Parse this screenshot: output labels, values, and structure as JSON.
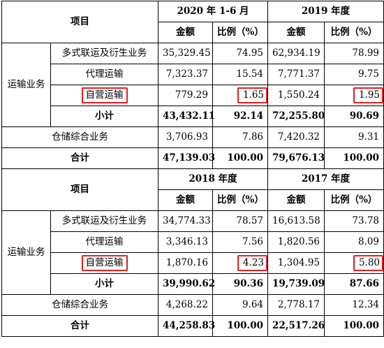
{
  "header_label": "项目",
  "col_amount": "金额",
  "col_ratio": "比例（%）",
  "group_label": "运输业务",
  "subtotal_label": "小计",
  "warehouse_label": "仓储综合业务",
  "total_label": "合计",
  "highlight_color": "#e02020",
  "blocks": [
    {
      "periods": [
        "2020 年 1-6 月",
        "2019 年度"
      ],
      "rows": [
        {
          "label": "多式联运及衍生业务",
          "v": [
            "35,329.45",
            "74.95",
            "62,934.19",
            "78.99"
          ]
        },
        {
          "label": "代理运输",
          "v": [
            "7,323.37",
            "15.54",
            "7,771.37",
            "9.75"
          ]
        },
        {
          "label": "自营运输",
          "v": [
            "779.29",
            "1.65",
            "1,550.24",
            "1.95"
          ]
        }
      ],
      "subtotal": [
        "43,432.11",
        "92.14",
        "72,255.80",
        "90.69"
      ],
      "warehouse": [
        "3,706.93",
        "7.86",
        "7,420.32",
        "9.31"
      ],
      "total": [
        "47,139.03",
        "100.00",
        "79,676.13",
        "100.00"
      ]
    },
    {
      "periods": [
        "2018 年度",
        "2017 年度"
      ],
      "rows": [
        {
          "label": "多式联运及衍生业务",
          "v": [
            "34,774.33",
            "78.57",
            "16,613.58",
            "73.78"
          ]
        },
        {
          "label": "代理运输",
          "v": [
            "3,346.13",
            "7.56",
            "1,820.56",
            "8.09"
          ]
        },
        {
          "label": "自营运输",
          "v": [
            "1,870.16",
            "4.23",
            "1,304.95",
            "5.80"
          ]
        }
      ],
      "subtotal": [
        "39,990.62",
        "90.36",
        "19,739.09",
        "87.66"
      ],
      "warehouse": [
        "4,268.22",
        "9.64",
        "2,778.17",
        "12.34"
      ],
      "total": [
        "44,258.83",
        "100.00",
        "22,517.26",
        "100.00"
      ]
    }
  ]
}
